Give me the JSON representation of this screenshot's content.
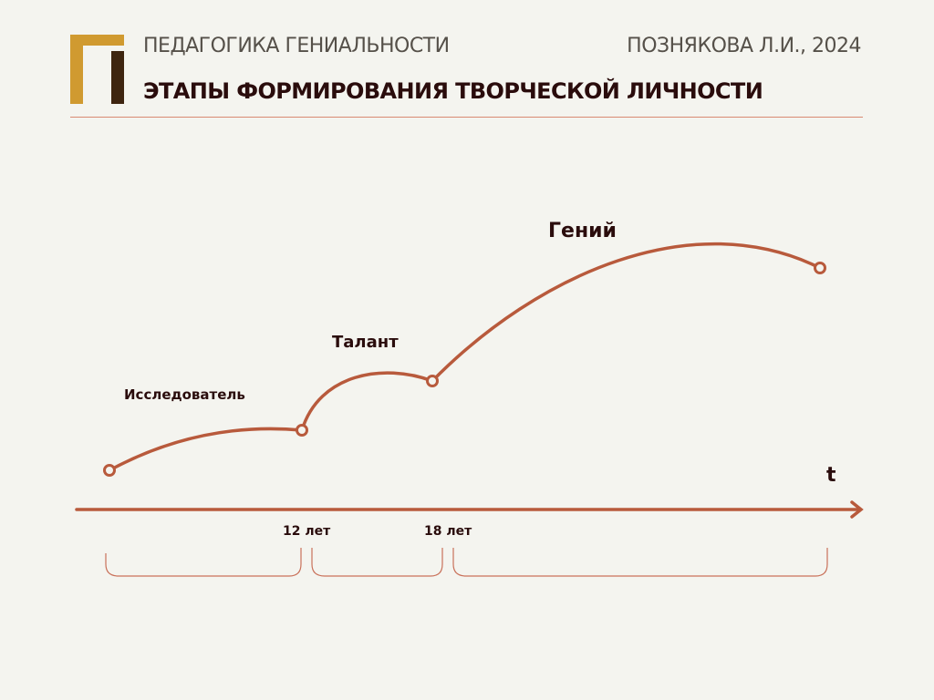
{
  "header": {
    "subtitle": "ПЕДАГОГИКА ГЕНИАЛЬНОСТИ",
    "author": "ПОЗНЯКОВА Л.И., 2024",
    "title": "ЭТАПЫ ФОРМИРОВАНИЯ ТВОРЧЕСКОЙ ЛИЧНОСТИ"
  },
  "diagram": {
    "stages": [
      "Исследователь",
      "Талант",
      "Гений"
    ],
    "axis_label": "t",
    "ticks": [
      "12 лет",
      "18 лет"
    ],
    "colors": {
      "curve": "#b85a3c",
      "text": "#2a0c0c",
      "logo_gold": "#d09a30",
      "logo_dark": "#3e2510"
    }
  }
}
